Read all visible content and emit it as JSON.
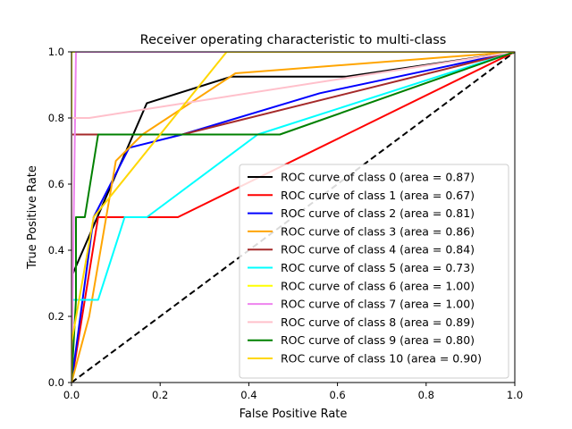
{
  "chart_data": {
    "type": "line",
    "title": "Receiver operating characteristic to multi-class",
    "xlabel": "False Positive Rate",
    "ylabel": "True Positive Rate",
    "xlim": [
      0,
      1
    ],
    "ylim": [
      0,
      1
    ],
    "xticks": [
      "0.0",
      "0.2",
      "0.4",
      "0.6",
      "0.8",
      "1.0"
    ],
    "yticks": [
      "0.0",
      "0.2",
      "0.4",
      "0.6",
      "0.8",
      "1.0"
    ],
    "grid": false,
    "legend_position": "lower-right",
    "diagonal": {
      "name": "",
      "style": "dashed",
      "color": "#000000",
      "x": [
        0,
        1
      ],
      "y": [
        0,
        1
      ]
    },
    "series": [
      {
        "name": "ROC curve of class 0 (area = 0.87)",
        "color": "#000000",
        "x": [
          0,
          0,
          0.17,
          0.36,
          0.62,
          1
        ],
        "y": [
          0,
          0.32,
          0.845,
          0.925,
          0.925,
          1
        ]
      },
      {
        "name": "ROC curve of class 1 (area = 0.67)",
        "color": "#ff0000",
        "x": [
          0,
          0.06,
          0.24,
          1
        ],
        "y": [
          0,
          0.5,
          0.5,
          1
        ]
      },
      {
        "name": "ROC curve of class 2 (area = 0.81)",
        "color": "#0000ff",
        "x": [
          0,
          0.05,
          0.13,
          0.25,
          0.56,
          1
        ],
        "y": [
          0,
          0.5,
          0.71,
          0.75,
          0.875,
          1
        ]
      },
      {
        "name": "ROC curve of class 3 (area = 0.86)",
        "color": "#ffa500",
        "x": [
          0,
          0.04,
          0.1,
          0.16,
          0.37,
          1
        ],
        "y": [
          0,
          0.2,
          0.67,
          0.75,
          0.935,
          1
        ]
      },
      {
        "name": "ROC curve of class 4 (area = 0.84)",
        "color": "#a52a2a",
        "x": [
          0,
          0,
          0.25,
          1
        ],
        "y": [
          0,
          0.75,
          0.75,
          1
        ]
      },
      {
        "name": "ROC curve of class 5 (area = 0.73)",
        "color": "#00ffff",
        "x": [
          0,
          0,
          0.06,
          0.12,
          0.17,
          0.42,
          1
        ],
        "y": [
          0,
          0.25,
          0.25,
          0.5,
          0.5,
          0.75,
          1
        ]
      },
      {
        "name": "ROC curve of class 6 (area = 1.00)",
        "color": "#ffff00",
        "x": [
          0,
          0,
          1
        ],
        "y": [
          0,
          1,
          1
        ]
      },
      {
        "name": "ROC curve of class 7 (area = 1.00)",
        "color": "#ee82ee",
        "x": [
          0,
          0.01,
          1
        ],
        "y": [
          0,
          1,
          1
        ]
      },
      {
        "name": "ROC curve of class 8 (area = 0.89)",
        "color": "#ffc0cb",
        "x": [
          0,
          0,
          0.04,
          1
        ],
        "y": [
          0,
          0.8,
          0.8,
          1
        ]
      },
      {
        "name": "ROC curve of class 9 (area = 0.80)",
        "color": "#008000",
        "x": [
          0,
          0.01,
          0.01,
          0.03,
          0.03,
          0.06,
          0.47,
          1
        ],
        "y": [
          0,
          0.25,
          0.5,
          0.5,
          0.5,
          0.75,
          0.75,
          1
        ]
      },
      {
        "name": "ROC curve of class 10 (area = 0.90)",
        "color": "#ffd700",
        "x": [
          0,
          0,
          0.05,
          0.35,
          1
        ],
        "y": [
          0,
          0.12,
          0.5,
          1,
          1
        ]
      }
    ]
  }
}
